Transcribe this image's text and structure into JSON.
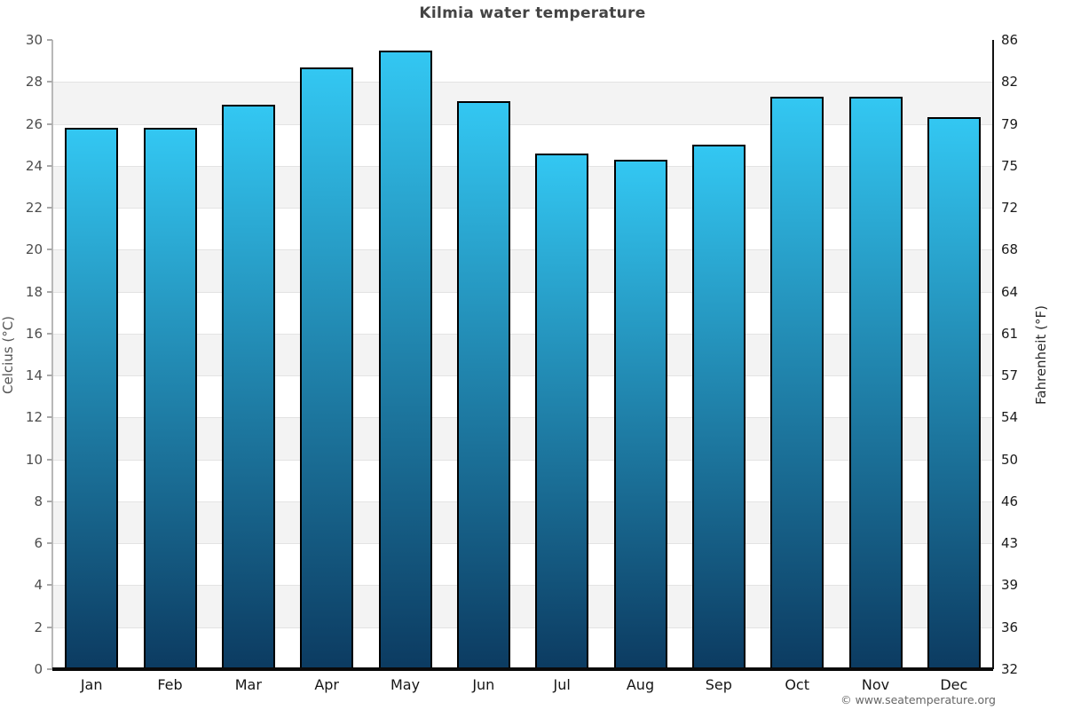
{
  "title": "Kilmia water temperature",
  "footer": "© www.seatemperature.org",
  "axes": {
    "left_label": "Celcius (°C)",
    "right_label": "Fahrenheit (°F)"
  },
  "colors": {
    "title": "#444444",
    "tick_left": "#4d4d4d",
    "tick_right": "#1c1c1c",
    "month_label": "#151515",
    "footer": "#666666",
    "bar_top": "#33C7F2",
    "bar_bottom": "#0C3B61",
    "bar_border": "#000000",
    "band_gray": "#F3F3F3",
    "band_white": "#FFFFFF",
    "gridline": "#E3E3E3",
    "left_spine": "#B8B8B8",
    "right_spine": "#111111",
    "baseline": "#0A0A0A"
  },
  "chart_data": {
    "type": "bar",
    "title": "Kilmia water temperature",
    "categories": [
      "Jan",
      "Feb",
      "Mar",
      "Apr",
      "May",
      "Jun",
      "Jul",
      "Aug",
      "Sep",
      "Oct",
      "Nov",
      "Dec"
    ],
    "values": [
      25.8,
      25.8,
      26.9,
      28.7,
      29.5,
      27.1,
      24.6,
      24.3,
      25.0,
      27.3,
      27.3,
      26.3
    ],
    "values_unit": "°C",
    "xlabel": "",
    "ylabel_left": "Celcius (°C)",
    "ylabel_right": "Fahrenheit (°F)",
    "ylim": [
      0,
      30
    ],
    "yticks_left": [
      30,
      28,
      26,
      24,
      22,
      20,
      18,
      16,
      14,
      12,
      10,
      8,
      6,
      4,
      2,
      0
    ],
    "yticks_right": [
      86,
      82,
      79,
      75,
      72,
      68,
      64,
      61,
      57,
      54,
      50,
      46,
      43,
      39,
      36,
      32
    ],
    "grid": "horizontal gridlines every 2°C with alternating white/gray bands (gray: 2-4, 6-8, 10-12, 14-16, 18-20, 22-24, 26-28)",
    "legend": "none",
    "bar_fill": "vertical gradient #33C7F2 (top) to #0C3B61 (bottom), 2px black outline"
  }
}
